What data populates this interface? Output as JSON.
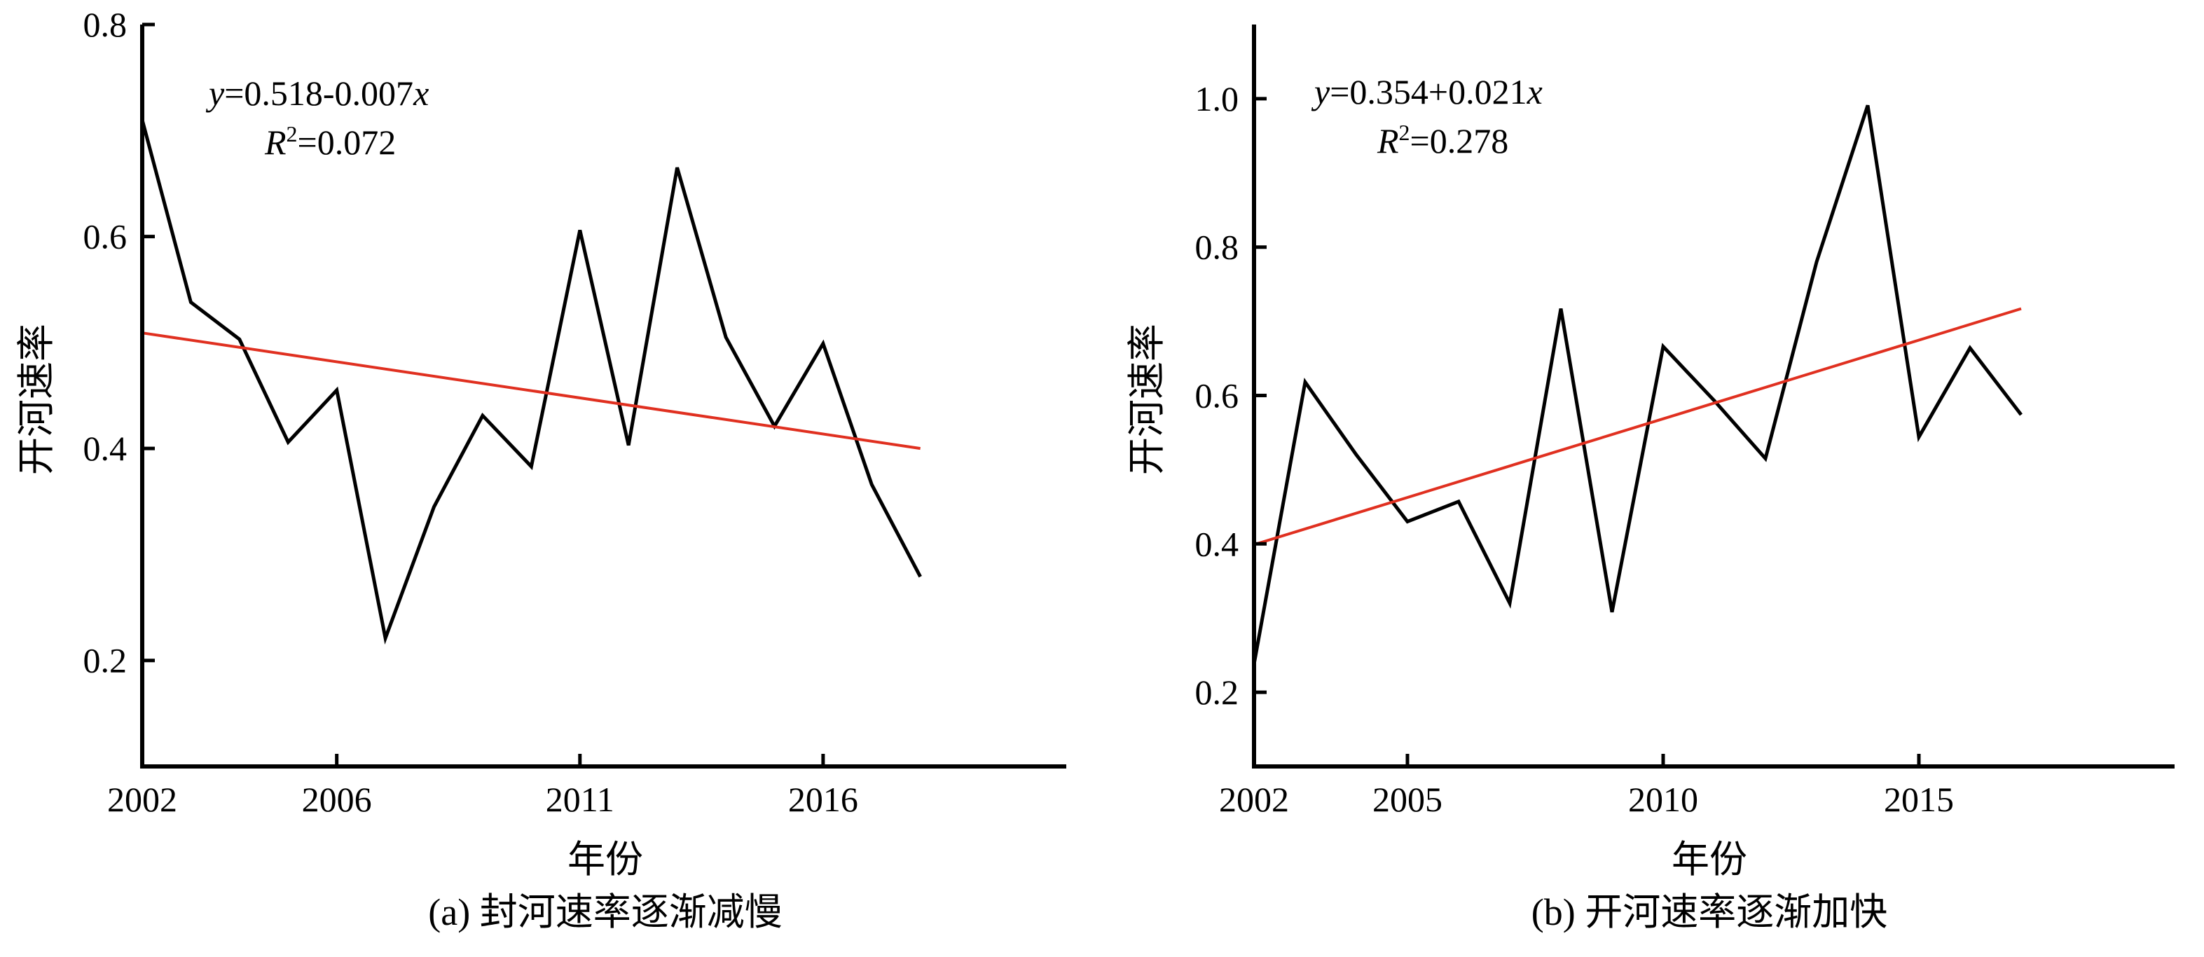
{
  "chart_data": [
    {
      "id": "a",
      "type": "line",
      "caption": "(a) 封河速率逐渐减慢",
      "xlabel": "年份",
      "ylabel": "开河速率",
      "xlim": [
        2002,
        2021
      ],
      "ylim": [
        0.1,
        0.8
      ],
      "xticks": [
        2002,
        2006,
        2011,
        2016
      ],
      "xtick_labels": [
        "2002",
        "2006",
        "2011",
        "2016"
      ],
      "yticks": [
        0.2,
        0.4,
        0.6,
        0.8
      ],
      "ytick_labels": [
        "0.2",
        "0.4",
        "0.6",
        "0.8"
      ],
      "grid": false,
      "equation": {
        "line1": {
          "var": "y",
          "mid": "=0.518-0.007",
          "var2": "x"
        },
        "line2": {
          "var": "R",
          "sup": "2",
          "rest": "=0.072"
        }
      },
      "series": [
        {
          "color": "#000000",
          "x": [
            2002,
            2003,
            2004,
            2005,
            2006,
            2007,
            2008,
            2009,
            2010,
            2011,
            2012,
            2013,
            2014,
            2015,
            2016,
            2017,
            2018
          ],
          "values": [
            0.71,
            0.538,
            0.503,
            0.406,
            0.455,
            0.221,
            0.345,
            0.431,
            0.383,
            0.606,
            0.403,
            0.665,
            0.505,
            0.421,
            0.499,
            0.366,
            0.279
          ]
        },
        {
          "color": "#e03020",
          "x": [
            2002,
            2018
          ],
          "values": [
            0.509,
            0.4
          ]
        }
      ]
    },
    {
      "id": "b",
      "type": "line",
      "caption": "(b) 开河速率逐渐加快",
      "xlabel": "年份",
      "ylabel": "开河速率",
      "xlim": [
        2002,
        2020
      ],
      "ylim": [
        0.1,
        1.1
      ],
      "xticks": [
        2002,
        2005,
        2010,
        2015
      ],
      "xtick_labels": [
        "2002",
        "2005",
        "2010",
        "2015"
      ],
      "yticks": [
        0.2,
        0.4,
        0.6,
        0.8,
        1.0
      ],
      "ytick_labels": [
        "0.2",
        "0.4",
        "0.6",
        "0.8",
        "1.0"
      ],
      "grid": false,
      "equation": {
        "line1": {
          "var": "y",
          "mid": "=0.354+0.021",
          "var2": "x"
        },
        "line2": {
          "var": "R",
          "sup": "2",
          "rest": "=0.278"
        }
      },
      "series": [
        {
          "color": "#000000",
          "x": [
            2002,
            2003,
            2004,
            2005,
            2006,
            2007,
            2008,
            2009,
            2010,
            2011,
            2012,
            2013,
            2014,
            2015,
            2016,
            2017
          ],
          "values": [
            0.238,
            0.618,
            0.52,
            0.43,
            0.457,
            0.32,
            0.717,
            0.308,
            0.666,
            0.593,
            0.515,
            0.78,
            0.991,
            0.544,
            0.664,
            0.574
          ]
        },
        {
          "color": "#e03020",
          "x": [
            2002,
            2017
          ],
          "values": [
            0.399,
            0.717
          ]
        }
      ]
    }
  ]
}
